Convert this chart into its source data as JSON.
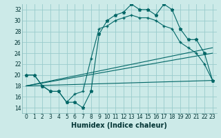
{
  "xlabel": "Humidex (Indice chaleur)",
  "bg_color": "#cceae8",
  "grid_color": "#99cccc",
  "line_color": "#006666",
  "xlim": [
    -0.5,
    23.5
  ],
  "ylim": [
    13,
    33
  ],
  "yticks": [
    14,
    16,
    18,
    20,
    22,
    24,
    26,
    28,
    30,
    32
  ],
  "xticks": [
    0,
    1,
    2,
    3,
    4,
    5,
    6,
    7,
    8,
    9,
    10,
    11,
    12,
    13,
    14,
    15,
    16,
    17,
    18,
    19,
    20,
    21,
    22,
    23
  ],
  "line1_x": [
    0,
    1,
    2,
    3,
    4,
    5,
    6,
    7,
    8,
    9,
    10,
    11,
    12,
    13,
    14,
    15,
    16,
    17,
    18,
    19,
    20,
    21,
    22,
    23
  ],
  "line1_y": [
    20,
    20,
    18,
    17,
    17,
    15,
    15,
    14,
    17,
    27.5,
    30,
    31,
    31.5,
    33,
    32,
    32,
    31,
    33,
    32,
    28.5,
    26.5,
    26.5,
    24,
    19
  ],
  "line2_x": [
    0,
    1,
    2,
    3,
    4,
    5,
    6,
    7,
    8,
    9,
    10,
    11,
    12,
    13,
    14,
    15,
    16,
    17,
    18,
    19,
    20,
    21,
    22,
    23
  ],
  "line2_y": [
    20,
    20,
    18,
    17,
    17,
    15,
    16.5,
    17,
    23,
    28.5,
    29,
    30,
    30.5,
    31,
    30.5,
    30.5,
    30,
    29,
    28.5,
    26,
    25,
    24,
    22,
    19
  ],
  "line3_x": [
    0,
    23
  ],
  "line3_y": [
    18,
    25
  ],
  "line4_x": [
    0,
    23
  ],
  "line4_y": [
    18,
    24
  ],
  "line5_x": [
    0,
    23
  ],
  "line5_y": [
    18,
    19
  ]
}
